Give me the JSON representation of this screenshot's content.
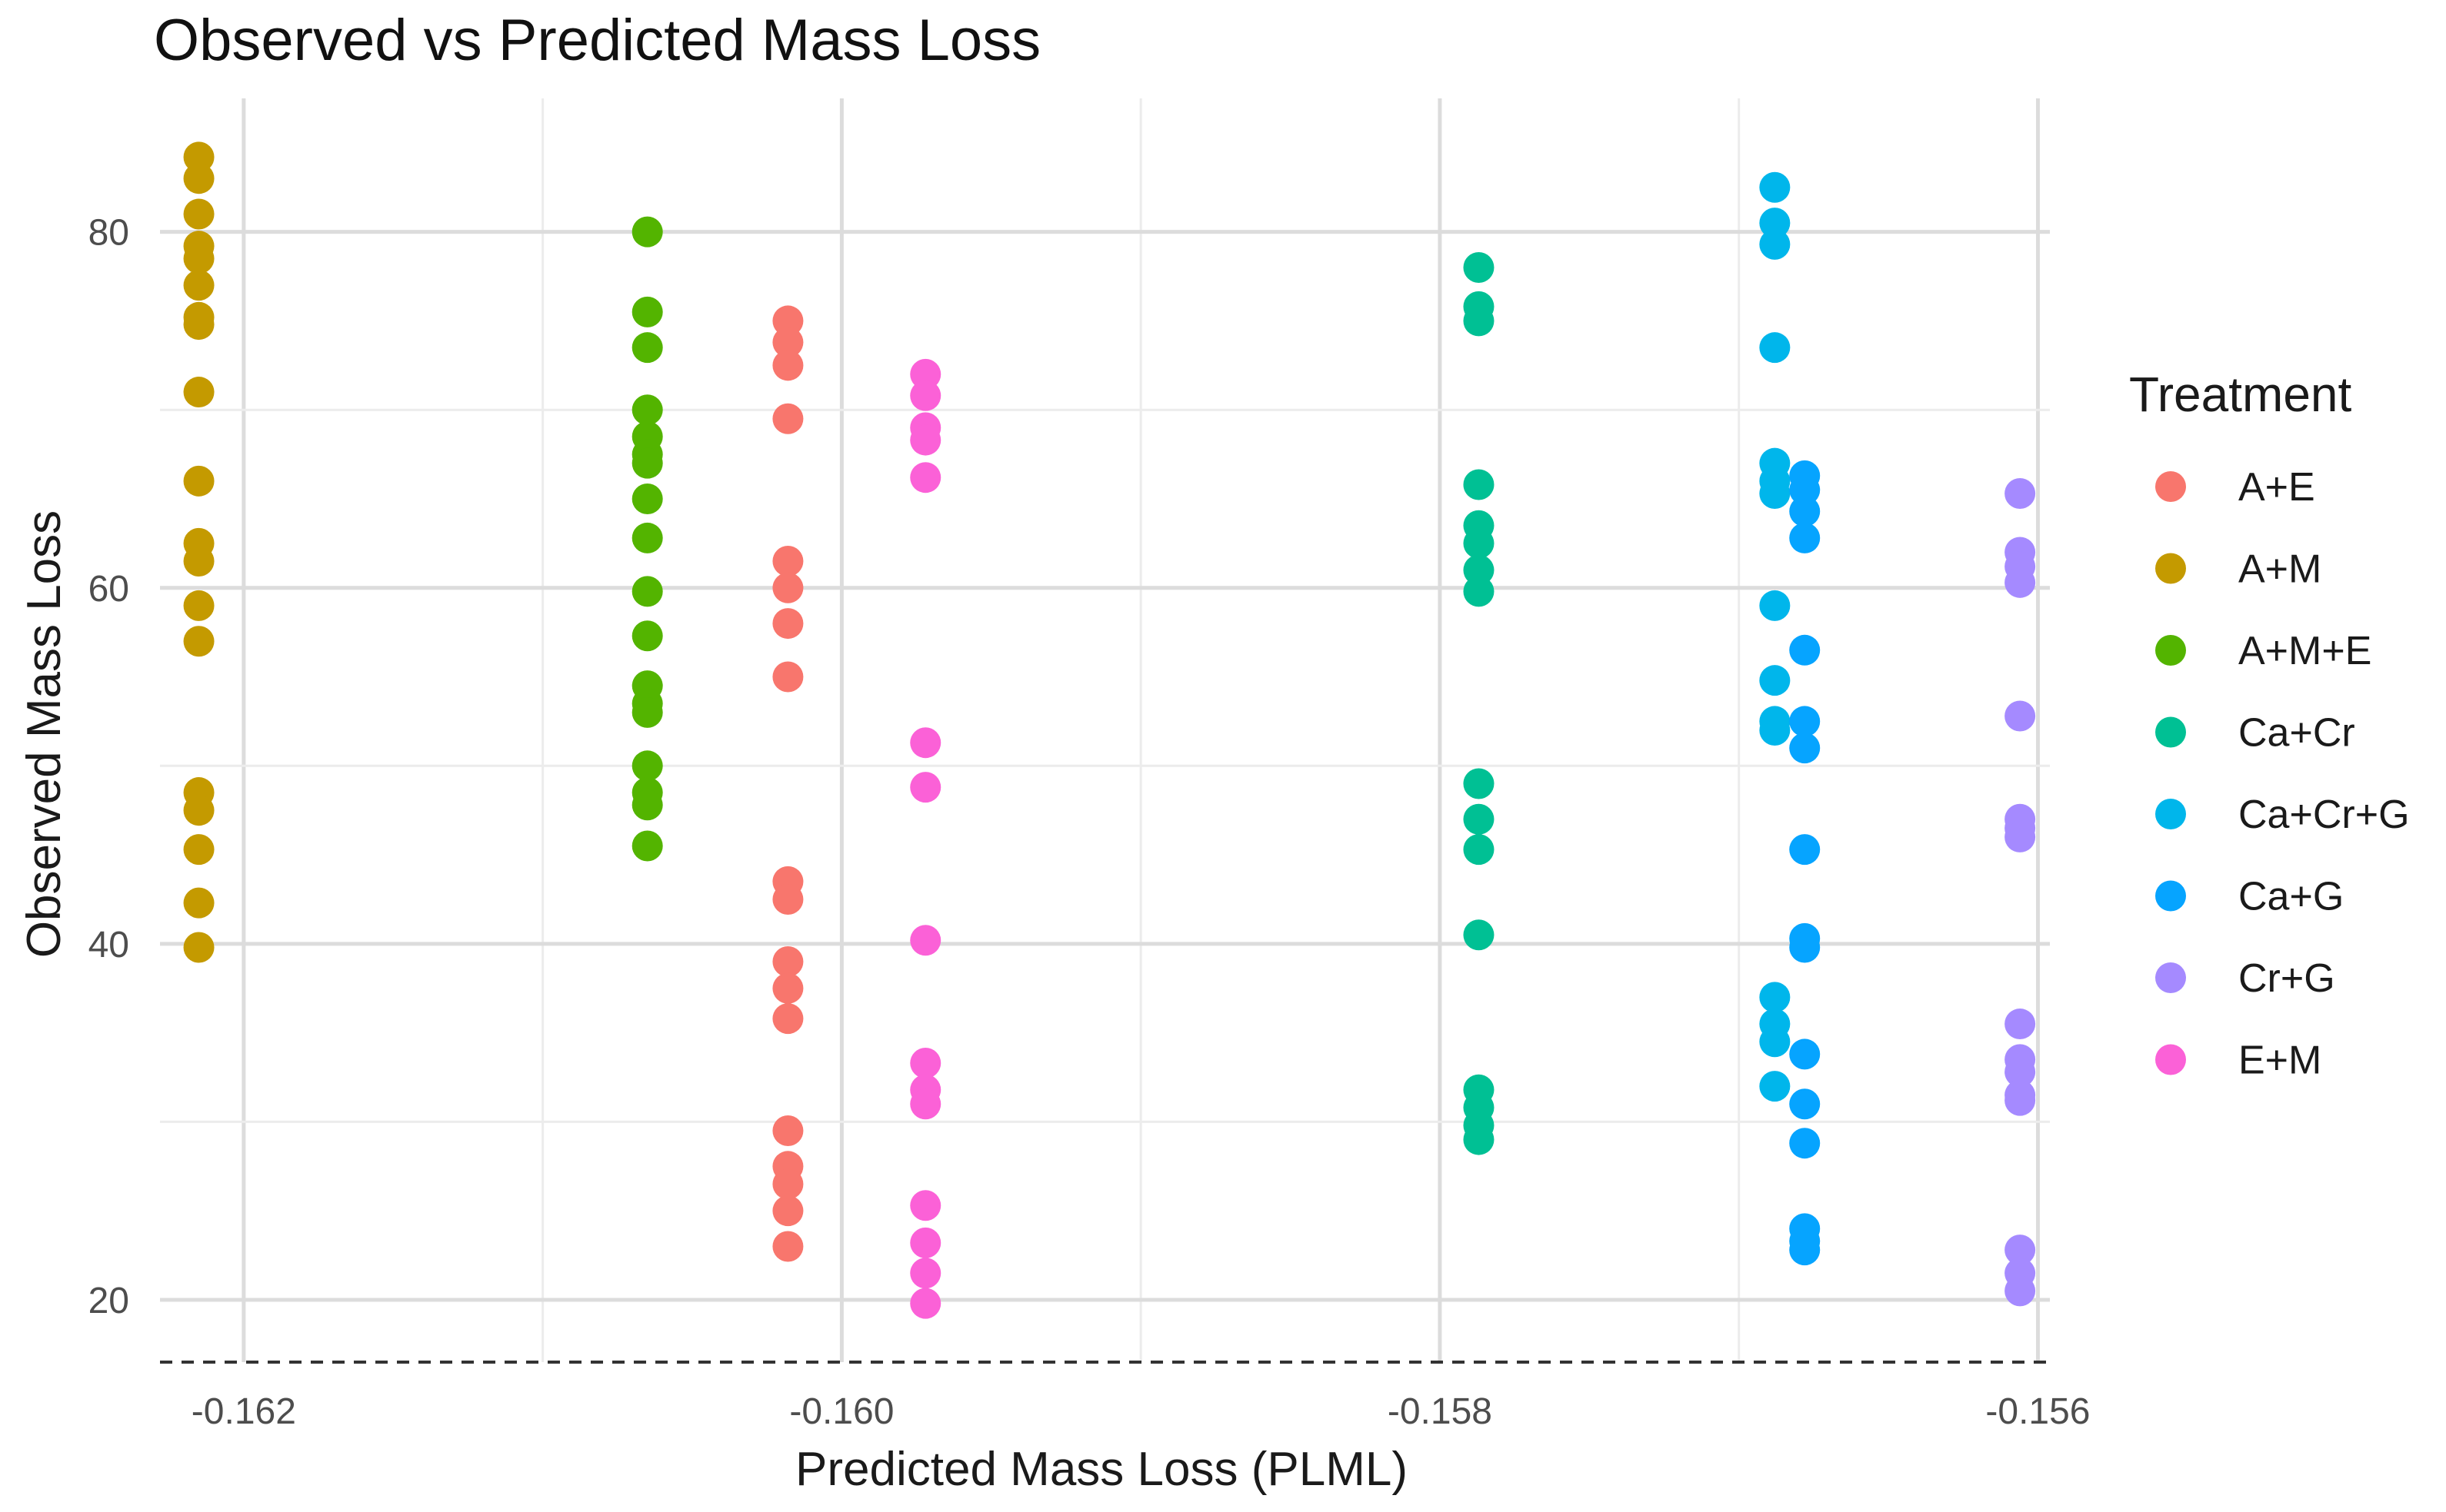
{
  "chart_data": {
    "type": "scatter",
    "title": "Observed vs Predicted Mass Loss",
    "xlabel": "Predicted Mass Loss (PLML)",
    "ylabel": "Observed Mass Loss",
    "xlim": [
      -0.16228,
      -0.15596
    ],
    "ylim": [
      16.5,
      87.5
    ],
    "x_ticks": [
      -0.162,
      -0.16,
      -0.158,
      -0.156
    ],
    "x_tick_labels": [
      "-0.162",
      "-0.160",
      "-0.158",
      "-0.156"
    ],
    "y_ticks": [
      20,
      40,
      60,
      80
    ],
    "y_tick_labels": [
      "20",
      "40",
      "60",
      "80"
    ],
    "reference_line": {
      "y": 16.5,
      "style": "dashed"
    },
    "grid": true,
    "legend": {
      "title": "Treatment",
      "position": "right"
    },
    "series": [
      {
        "name": "A+E",
        "color": "#F8766D",
        "x": -0.16018,
        "values": [
          75,
          73.8,
          72.5,
          69.5,
          61.5,
          60,
          58,
          55,
          43.5,
          42.5,
          39,
          37.5,
          35.8,
          29.5,
          27.5,
          26.5,
          25,
          23
        ]
      },
      {
        "name": "A+M",
        "color": "#C49A00",
        "x": -0.16215,
        "values": [
          84.2,
          83,
          81,
          79.2,
          78.5,
          77,
          75.2,
          74.8,
          71,
          66,
          62.5,
          61.5,
          59,
          57,
          48.5,
          47.5,
          45.3,
          42.3,
          39.8
        ]
      },
      {
        "name": "A+M+E",
        "color": "#53B400",
        "x": -0.16065,
        "values": [
          80,
          75.5,
          73.5,
          70,
          68.5,
          67.5,
          67,
          65,
          62.8,
          59.8,
          57.3,
          54.5,
          53.5,
          53,
          50,
          48.5,
          47.8,
          45.5
        ]
      },
      {
        "name": "Ca+Cr",
        "color": "#00C094",
        "x": -0.15787,
        "values": [
          78,
          75.8,
          75,
          65.8,
          63.5,
          62.5,
          61,
          59.8,
          49,
          47,
          45.3,
          40.5,
          31.8,
          30.8,
          29.8,
          29
        ]
      },
      {
        "name": "Ca+Cr+G",
        "color": "#00B6EB",
        "x": -0.15688,
        "values": [
          82.5,
          80.5,
          79.3,
          73.5,
          67,
          66,
          65.3,
          59,
          54.8,
          52.5,
          52,
          37,
          35.5,
          34.5,
          32
        ]
      },
      {
        "name": "Ca+G",
        "color": "#06A4FF",
        "x": -0.15678,
        "values": [
          66.3,
          65.5,
          64.3,
          62.8,
          56.5,
          52.5,
          51,
          45.3,
          40.3,
          39.8,
          33.8,
          31,
          28.8,
          24,
          23.3,
          22.8
        ]
      },
      {
        "name": "Cr+G",
        "color": "#A58AFF",
        "x": -0.15606,
        "values": [
          65.3,
          62,
          61.2,
          60.3,
          52.8,
          47,
          46.5,
          46,
          35.5,
          33.5,
          32.8,
          31.5,
          31.2,
          22.8,
          21.5,
          20.5
        ]
      },
      {
        "name": "E+M",
        "color": "#FB61D7",
        "x": -0.15972,
        "values": [
          72,
          70.8,
          69,
          68.3,
          66.2,
          51.3,
          48.8,
          40.2,
          33.3,
          31.8,
          31,
          25.3,
          23.2,
          21.5,
          19.8
        ]
      }
    ]
  }
}
